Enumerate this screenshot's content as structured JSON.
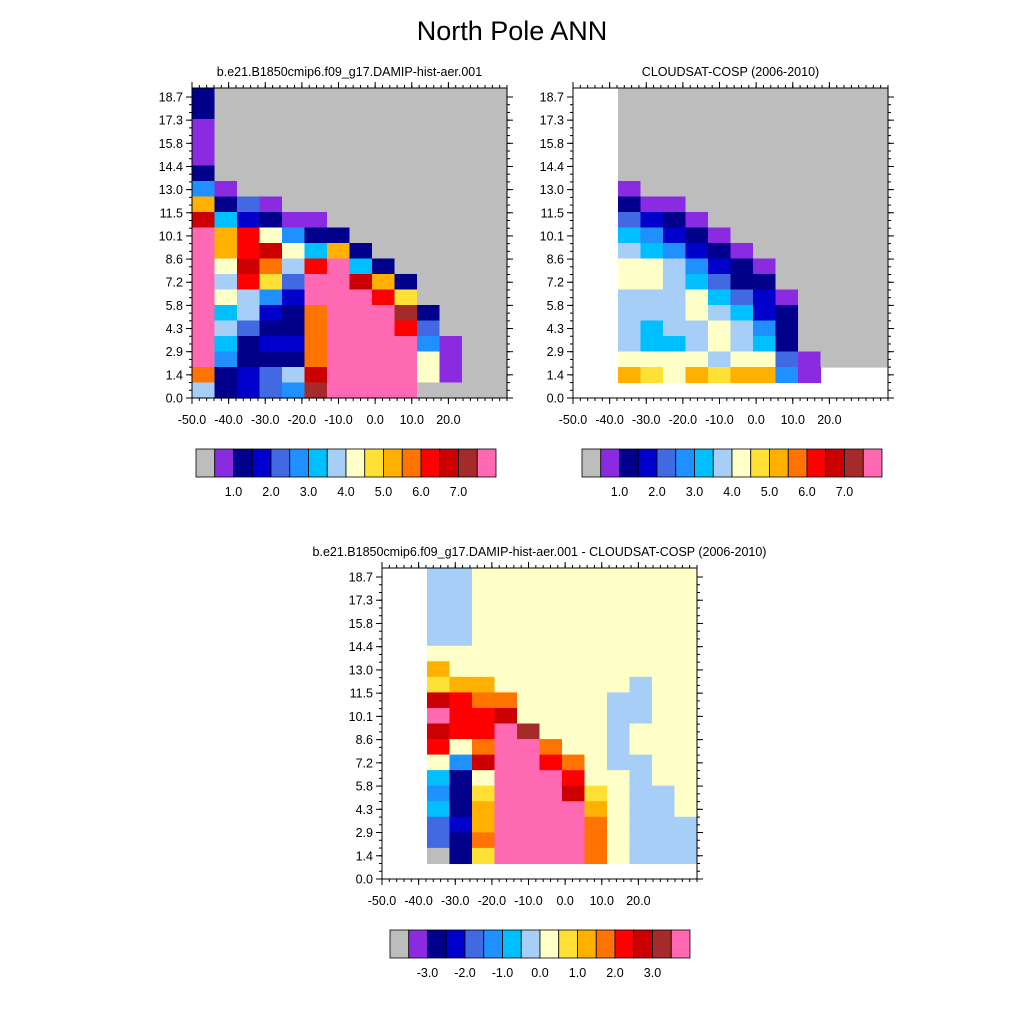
{
  "title": "North Pole ANN",
  "palette": {
    "abs": [
      "#bdbdbd",
      "#8a2be2",
      "#00008b",
      "#0000cd",
      "#4169e1",
      "#1e90ff",
      "#00bfff",
      "#a6cef7",
      "#ffffc8",
      "#ffe135",
      "#ffb000",
      "#ff7400",
      "#ff0000",
      "#cc0000",
      "#a52a2a",
      "#ff69b4"
    ],
    "diff": [
      "#bdbdbd",
      "#8a2be2",
      "#00008b",
      "#0000cd",
      "#4169e1",
      "#1e90ff",
      "#00bfff",
      "#a6cef7",
      "#ffffc8",
      "#ffe135",
      "#ffb000",
      "#ff7400",
      "#ff0000",
      "#cc0000",
      "#a52a2a",
      "#ff69b4"
    ]
  },
  "chart_data": [
    {
      "type": "heatmap",
      "title": "b.e21.B1850cmip6.f09_g17.DAMIP-hist-aer.001",
      "xlabel": "",
      "ylabel": "",
      "x_ticks": [
        "-50.0",
        "-40.0",
        "-30.0",
        "-20.0",
        "-10.0",
        "0.0",
        "10.0",
        "20.0"
      ],
      "y_ticks": [
        "18.7",
        "17.3",
        "15.8",
        "14.4",
        "13.0",
        "11.5",
        "10.1",
        "8.6",
        "7.2",
        "5.8",
        "4.3",
        "2.9",
        "1.4",
        "0.0"
      ],
      "colorbar_labels": [
        "1.0",
        "2.0",
        "3.0",
        "4.0",
        "5.0",
        "6.0",
        "7.0"
      ],
      "missing_index": 0,
      "note_grid": "rows top-to-bottom (CTP bins), cols left-to-right (tau bins); value = color index",
      "cells": [
        [
          2,
          0,
          0,
          0,
          0,
          0,
          0,
          0,
          0,
          0,
          0,
          0,
          0,
          0
        ],
        [
          2,
          0,
          0,
          0,
          0,
          0,
          0,
          0,
          0,
          0,
          0,
          0,
          0,
          0
        ],
        [
          1,
          0,
          0,
          0,
          0,
          0,
          0,
          0,
          0,
          0,
          0,
          0,
          0,
          0
        ],
        [
          1,
          0,
          0,
          0,
          0,
          0,
          0,
          0,
          0,
          0,
          0,
          0,
          0,
          0
        ],
        [
          1,
          0,
          0,
          0,
          0,
          0,
          0,
          0,
          0,
          0,
          0,
          0,
          0,
          0
        ],
        [
          2,
          0,
          0,
          0,
          0,
          0,
          0,
          0,
          0,
          0,
          0,
          0,
          0,
          0
        ],
        [
          5,
          1,
          0,
          0,
          0,
          0,
          0,
          0,
          0,
          0,
          0,
          0,
          0,
          0
        ],
        [
          10,
          2,
          4,
          1,
          0,
          0,
          0,
          0,
          0,
          0,
          0,
          0,
          0,
          0
        ],
        [
          13,
          6,
          3,
          2,
          1,
          1,
          0,
          0,
          0,
          0,
          0,
          0,
          0,
          0
        ],
        [
          15,
          10,
          12,
          8,
          5,
          2,
          2,
          0,
          0,
          0,
          0,
          0,
          0,
          0
        ],
        [
          15,
          10,
          12,
          13,
          8,
          6,
          10,
          2,
          0,
          0,
          0,
          0,
          0,
          0
        ],
        [
          15,
          8,
          13,
          11,
          7,
          12,
          15,
          6,
          2,
          0,
          0,
          0,
          0,
          0
        ],
        [
          15,
          7,
          12,
          9,
          4,
          15,
          15,
          13,
          10,
          2,
          0,
          0,
          0,
          0
        ],
        [
          15,
          8,
          7,
          5,
          3,
          15,
          15,
          15,
          12,
          9,
          0,
          0,
          0,
          0
        ],
        [
          15,
          6,
          7,
          3,
          2,
          11,
          15,
          15,
          15,
          14,
          2,
          0,
          0,
          0
        ],
        [
          15,
          7,
          4,
          2,
          2,
          11,
          15,
          15,
          15,
          12,
          4,
          0,
          0,
          0
        ],
        [
          15,
          6,
          2,
          3,
          3,
          11,
          15,
          15,
          15,
          15,
          5,
          1,
          0,
          0
        ],
        [
          15,
          5,
          2,
          2,
          2,
          11,
          15,
          15,
          15,
          15,
          8,
          1,
          0,
          0
        ],
        [
          11,
          2,
          3,
          4,
          7,
          13,
          15,
          15,
          15,
          15,
          8,
          1,
          0,
          0
        ],
        [
          7,
          2,
          3,
          4,
          5,
          14,
          15,
          15,
          15,
          15,
          0,
          0,
          0,
          0
        ]
      ]
    },
    {
      "type": "heatmap",
      "title": "CLOUDSAT-COSP (2006-2010)",
      "xlabel": "",
      "ylabel": "",
      "x_ticks": [
        "-50.0",
        "-40.0",
        "-30.0",
        "-20.0",
        "-10.0",
        "0.0",
        "10.0",
        "20.0"
      ],
      "y_ticks": [
        "18.7",
        "17.3",
        "15.8",
        "14.4",
        "13.0",
        "11.5",
        "10.1",
        "8.6",
        "7.2",
        "5.8",
        "4.3",
        "2.9",
        "1.4",
        "0.0"
      ],
      "colorbar_labels": [
        "1.0",
        "2.0",
        "3.0",
        "4.0",
        "5.0",
        "6.0",
        "7.0"
      ],
      "missing_index": 0,
      "cells": [
        [
          -1,
          -1,
          0,
          0,
          0,
          0,
          0,
          0,
          0,
          0,
          0,
          0,
          0,
          0
        ],
        [
          -1,
          -1,
          0,
          0,
          0,
          0,
          0,
          0,
          0,
          0,
          0,
          0,
          0,
          0
        ],
        [
          -1,
          -1,
          0,
          0,
          0,
          0,
          0,
          0,
          0,
          0,
          0,
          0,
          0,
          0
        ],
        [
          -1,
          -1,
          0,
          0,
          0,
          0,
          0,
          0,
          0,
          0,
          0,
          0,
          0,
          0
        ],
        [
          -1,
          -1,
          0,
          0,
          0,
          0,
          0,
          0,
          0,
          0,
          0,
          0,
          0,
          0
        ],
        [
          -1,
          -1,
          0,
          0,
          0,
          0,
          0,
          0,
          0,
          0,
          0,
          0,
          0,
          0
        ],
        [
          -1,
          -1,
          1,
          0,
          0,
          0,
          0,
          0,
          0,
          0,
          0,
          0,
          0,
          0
        ],
        [
          -1,
          -1,
          2,
          1,
          1,
          0,
          0,
          0,
          0,
          0,
          0,
          0,
          0,
          0
        ],
        [
          -1,
          -1,
          4,
          3,
          2,
          1,
          0,
          0,
          0,
          0,
          0,
          0,
          0,
          0
        ],
        [
          -1,
          -1,
          6,
          5,
          3,
          2,
          1,
          0,
          0,
          0,
          0,
          0,
          0,
          0
        ],
        [
          -1,
          -1,
          7,
          6,
          5,
          3,
          2,
          1,
          0,
          0,
          0,
          0,
          0,
          0
        ],
        [
          -1,
          -1,
          8,
          8,
          7,
          5,
          3,
          2,
          1,
          0,
          0,
          0,
          0,
          0
        ],
        [
          -1,
          -1,
          8,
          8,
          7,
          6,
          4,
          2,
          2,
          0,
          0,
          0,
          0,
          0
        ],
        [
          -1,
          -1,
          7,
          7,
          7,
          8,
          6,
          4,
          3,
          1,
          0,
          0,
          0,
          0
        ],
        [
          -1,
          -1,
          7,
          7,
          7,
          8,
          7,
          6,
          3,
          2,
          0,
          0,
          0,
          0
        ],
        [
          -1,
          -1,
          7,
          6,
          7,
          7,
          8,
          7,
          5,
          2,
          0,
          0,
          0,
          0
        ],
        [
          -1,
          -1,
          7,
          6,
          6,
          7,
          8,
          7,
          6,
          2,
          0,
          0,
          0,
          0
        ],
        [
          -1,
          -1,
          8,
          8,
          8,
          8,
          7,
          8,
          8,
          4,
          1,
          0,
          0,
          0
        ],
        [
          -1,
          -1,
          10,
          9,
          8,
          10,
          9,
          10,
          10,
          5,
          1,
          -1,
          -1,
          -1
        ],
        [
          -1,
          -1,
          -1,
          -1,
          -1,
          -1,
          -1,
          -1,
          -1,
          -1,
          -1,
          -1,
          -1,
          -1
        ]
      ]
    },
    {
      "type": "heatmap",
      "title": "b.e21.B1850cmip6.f09_g17.DAMIP-hist-aer.001 - CLOUDSAT-COSP (2006-2010)",
      "xlabel": "",
      "ylabel": "",
      "x_ticks": [
        "-50.0",
        "-40.0",
        "-30.0",
        "-20.0",
        "-10.0",
        "0.0",
        "10.0",
        "20.0"
      ],
      "y_ticks": [
        "18.7",
        "17.3",
        "15.8",
        "14.4",
        "13.0",
        "11.5",
        "10.1",
        "8.6",
        "7.2",
        "5.8",
        "4.3",
        "2.9",
        "1.4",
        "0.0"
      ],
      "colorbar_labels": [
        "-3.0",
        "-2.0",
        "-1.0",
        "0.0",
        "1.0",
        "2.0",
        "3.0"
      ],
      "missing_index": 0,
      "cells": [
        [
          -1,
          -1,
          7,
          7,
          8,
          8,
          8,
          8,
          8,
          8,
          8,
          8,
          8,
          8
        ],
        [
          -1,
          -1,
          7,
          7,
          8,
          8,
          8,
          8,
          8,
          8,
          8,
          8,
          8,
          8
        ],
        [
          -1,
          -1,
          7,
          7,
          8,
          8,
          8,
          8,
          8,
          8,
          8,
          8,
          8,
          8
        ],
        [
          -1,
          -1,
          7,
          7,
          8,
          8,
          8,
          8,
          8,
          8,
          8,
          8,
          8,
          8
        ],
        [
          -1,
          -1,
          7,
          7,
          8,
          8,
          8,
          8,
          8,
          8,
          8,
          8,
          8,
          8
        ],
        [
          -1,
          -1,
          8,
          8,
          8,
          8,
          8,
          8,
          8,
          8,
          8,
          8,
          8,
          8
        ],
        [
          -1,
          -1,
          10,
          8,
          8,
          8,
          8,
          8,
          8,
          8,
          8,
          8,
          8,
          8
        ],
        [
          -1,
          -1,
          9,
          10,
          10,
          8,
          8,
          8,
          8,
          8,
          8,
          7,
          8,
          8
        ],
        [
          -1,
          -1,
          13,
          12,
          11,
          11,
          8,
          8,
          8,
          8,
          7,
          7,
          8,
          8
        ],
        [
          -1,
          -1,
          15,
          12,
          12,
          13,
          8,
          8,
          8,
          8,
          7,
          7,
          8,
          8
        ],
        [
          -1,
          -1,
          13,
          12,
          12,
          15,
          14,
          8,
          8,
          8,
          7,
          8,
          8,
          8
        ],
        [
          -1,
          -1,
          12,
          8,
          11,
          15,
          15,
          11,
          8,
          8,
          7,
          8,
          8,
          8
        ],
        [
          -1,
          -1,
          8,
          5,
          13,
          15,
          15,
          12,
          11,
          8,
          7,
          7,
          8,
          8
        ],
        [
          -1,
          -1,
          6,
          2,
          8,
          15,
          15,
          15,
          12,
          8,
          8,
          7,
          8,
          8
        ],
        [
          -1,
          -1,
          5,
          2,
          9,
          15,
          15,
          15,
          13,
          9,
          8,
          7,
          7,
          8
        ],
        [
          -1,
          -1,
          6,
          2,
          10,
          15,
          15,
          15,
          15,
          10,
          8,
          7,
          7,
          8
        ],
        [
          -1,
          -1,
          4,
          3,
          10,
          15,
          15,
          15,
          15,
          11,
          8,
          7,
          7,
          7
        ],
        [
          -1,
          -1,
          4,
          2,
          11,
          15,
          15,
          15,
          15,
          11,
          8,
          7,
          7,
          7
        ],
        [
          -1,
          -1,
          0,
          2,
          9,
          15,
          15,
          15,
          15,
          11,
          8,
          7,
          7,
          7
        ],
        [
          -1,
          -1,
          -1,
          -1,
          -1,
          -1,
          -1,
          -1,
          -1,
          -1,
          -1,
          -1,
          -1,
          -1
        ]
      ]
    }
  ]
}
